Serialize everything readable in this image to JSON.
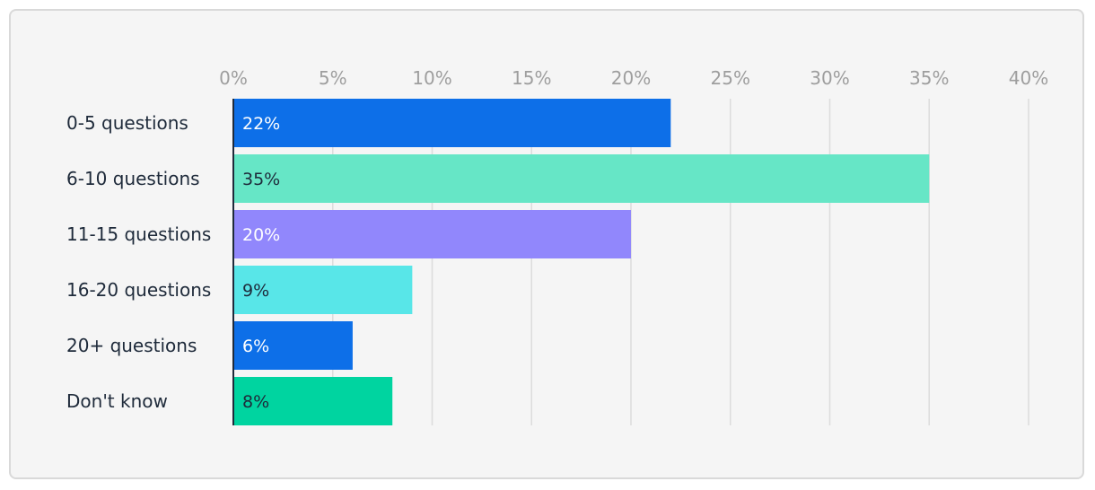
{
  "chart_data": {
    "type": "bar",
    "orientation": "horizontal",
    "categories": [
      "0-5 questions",
      "6-10 questions",
      "11-15 questions",
      "16-20 questions",
      "20+ questions",
      "Don't know"
    ],
    "values": [
      22,
      35,
      20,
      9,
      6,
      8
    ],
    "data_labels": [
      "22%",
      "35%",
      "20%",
      "9%",
      "6%",
      "8%"
    ],
    "bar_colors": [
      "#0d6fe8",
      "#66e6c6",
      "#9187fc",
      "#58e6e8",
      "#0d6fe8",
      "#00d4a0"
    ],
    "label_colors": [
      "#ffffff",
      "#1e2a3a",
      "#ffffff",
      "#1e2a3a",
      "#ffffff",
      "#1e2a3a"
    ],
    "xlim": [
      0,
      40
    ],
    "xticks": [
      0,
      5,
      10,
      15,
      20,
      25,
      30,
      35,
      40
    ],
    "xtick_labels": [
      "0%",
      "5%",
      "10%",
      "15%",
      "20%",
      "25%",
      "30%",
      "35%",
      "40%"
    ],
    "axis_position": "top",
    "grid": true,
    "legend": "none",
    "title": "",
    "xlabel": "",
    "ylabel": ""
  },
  "colors": {
    "background": "#f5f5f5",
    "gridline": "#dcdcdc",
    "tick_text": "#9e9e9e",
    "category_text": "#1e2a3a",
    "axis_line": "#1e2a3a"
  }
}
